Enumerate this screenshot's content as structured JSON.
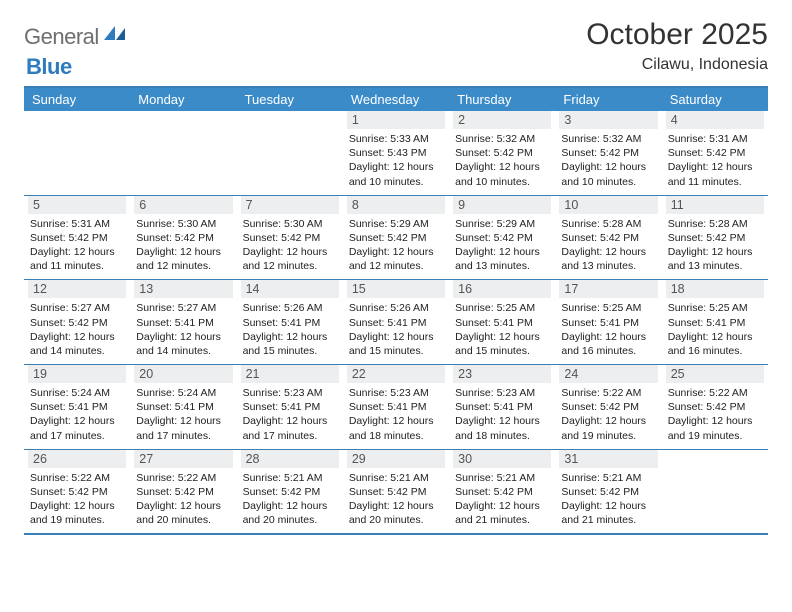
{
  "logo": {
    "text_gray": "General",
    "text_blue": "Blue"
  },
  "title": "October 2025",
  "location": "Cilawu, Indonesia",
  "colors": {
    "header_bg": "#3b8bc9",
    "border": "#3a7fb5",
    "daynum_bg": "#eceeef",
    "logo_gray": "#6f6f6f",
    "logo_blue": "#2f7bbf"
  },
  "day_headers": [
    "Sunday",
    "Monday",
    "Tuesday",
    "Wednesday",
    "Thursday",
    "Friday",
    "Saturday"
  ],
  "weeks": [
    [
      {
        "num": "",
        "sunrise": "",
        "sunset": "",
        "daylight": ""
      },
      {
        "num": "",
        "sunrise": "",
        "sunset": "",
        "daylight": ""
      },
      {
        "num": "",
        "sunrise": "",
        "sunset": "",
        "daylight": ""
      },
      {
        "num": "1",
        "sunrise": "Sunrise: 5:33 AM",
        "sunset": "Sunset: 5:43 PM",
        "daylight": "Daylight: 12 hours and 10 minutes."
      },
      {
        "num": "2",
        "sunrise": "Sunrise: 5:32 AM",
        "sunset": "Sunset: 5:42 PM",
        "daylight": "Daylight: 12 hours and 10 minutes."
      },
      {
        "num": "3",
        "sunrise": "Sunrise: 5:32 AM",
        "sunset": "Sunset: 5:42 PM",
        "daylight": "Daylight: 12 hours and 10 minutes."
      },
      {
        "num": "4",
        "sunrise": "Sunrise: 5:31 AM",
        "sunset": "Sunset: 5:42 PM",
        "daylight": "Daylight: 12 hours and 11 minutes."
      }
    ],
    [
      {
        "num": "5",
        "sunrise": "Sunrise: 5:31 AM",
        "sunset": "Sunset: 5:42 PM",
        "daylight": "Daylight: 12 hours and 11 minutes."
      },
      {
        "num": "6",
        "sunrise": "Sunrise: 5:30 AM",
        "sunset": "Sunset: 5:42 PM",
        "daylight": "Daylight: 12 hours and 12 minutes."
      },
      {
        "num": "7",
        "sunrise": "Sunrise: 5:30 AM",
        "sunset": "Sunset: 5:42 PM",
        "daylight": "Daylight: 12 hours and 12 minutes."
      },
      {
        "num": "8",
        "sunrise": "Sunrise: 5:29 AM",
        "sunset": "Sunset: 5:42 PM",
        "daylight": "Daylight: 12 hours and 12 minutes."
      },
      {
        "num": "9",
        "sunrise": "Sunrise: 5:29 AM",
        "sunset": "Sunset: 5:42 PM",
        "daylight": "Daylight: 12 hours and 13 minutes."
      },
      {
        "num": "10",
        "sunrise": "Sunrise: 5:28 AM",
        "sunset": "Sunset: 5:42 PM",
        "daylight": "Daylight: 12 hours and 13 minutes."
      },
      {
        "num": "11",
        "sunrise": "Sunrise: 5:28 AM",
        "sunset": "Sunset: 5:42 PM",
        "daylight": "Daylight: 12 hours and 13 minutes."
      }
    ],
    [
      {
        "num": "12",
        "sunrise": "Sunrise: 5:27 AM",
        "sunset": "Sunset: 5:42 PM",
        "daylight": "Daylight: 12 hours and 14 minutes."
      },
      {
        "num": "13",
        "sunrise": "Sunrise: 5:27 AM",
        "sunset": "Sunset: 5:41 PM",
        "daylight": "Daylight: 12 hours and 14 minutes."
      },
      {
        "num": "14",
        "sunrise": "Sunrise: 5:26 AM",
        "sunset": "Sunset: 5:41 PM",
        "daylight": "Daylight: 12 hours and 15 minutes."
      },
      {
        "num": "15",
        "sunrise": "Sunrise: 5:26 AM",
        "sunset": "Sunset: 5:41 PM",
        "daylight": "Daylight: 12 hours and 15 minutes."
      },
      {
        "num": "16",
        "sunrise": "Sunrise: 5:25 AM",
        "sunset": "Sunset: 5:41 PM",
        "daylight": "Daylight: 12 hours and 15 minutes."
      },
      {
        "num": "17",
        "sunrise": "Sunrise: 5:25 AM",
        "sunset": "Sunset: 5:41 PM",
        "daylight": "Daylight: 12 hours and 16 minutes."
      },
      {
        "num": "18",
        "sunrise": "Sunrise: 5:25 AM",
        "sunset": "Sunset: 5:41 PM",
        "daylight": "Daylight: 12 hours and 16 minutes."
      }
    ],
    [
      {
        "num": "19",
        "sunrise": "Sunrise: 5:24 AM",
        "sunset": "Sunset: 5:41 PM",
        "daylight": "Daylight: 12 hours and 17 minutes."
      },
      {
        "num": "20",
        "sunrise": "Sunrise: 5:24 AM",
        "sunset": "Sunset: 5:41 PM",
        "daylight": "Daylight: 12 hours and 17 minutes."
      },
      {
        "num": "21",
        "sunrise": "Sunrise: 5:23 AM",
        "sunset": "Sunset: 5:41 PM",
        "daylight": "Daylight: 12 hours and 17 minutes."
      },
      {
        "num": "22",
        "sunrise": "Sunrise: 5:23 AM",
        "sunset": "Sunset: 5:41 PM",
        "daylight": "Daylight: 12 hours and 18 minutes."
      },
      {
        "num": "23",
        "sunrise": "Sunrise: 5:23 AM",
        "sunset": "Sunset: 5:41 PM",
        "daylight": "Daylight: 12 hours and 18 minutes."
      },
      {
        "num": "24",
        "sunrise": "Sunrise: 5:22 AM",
        "sunset": "Sunset: 5:42 PM",
        "daylight": "Daylight: 12 hours and 19 minutes."
      },
      {
        "num": "25",
        "sunrise": "Sunrise: 5:22 AM",
        "sunset": "Sunset: 5:42 PM",
        "daylight": "Daylight: 12 hours and 19 minutes."
      }
    ],
    [
      {
        "num": "26",
        "sunrise": "Sunrise: 5:22 AM",
        "sunset": "Sunset: 5:42 PM",
        "daylight": "Daylight: 12 hours and 19 minutes."
      },
      {
        "num": "27",
        "sunrise": "Sunrise: 5:22 AM",
        "sunset": "Sunset: 5:42 PM",
        "daylight": "Daylight: 12 hours and 20 minutes."
      },
      {
        "num": "28",
        "sunrise": "Sunrise: 5:21 AM",
        "sunset": "Sunset: 5:42 PM",
        "daylight": "Daylight: 12 hours and 20 minutes."
      },
      {
        "num": "29",
        "sunrise": "Sunrise: 5:21 AM",
        "sunset": "Sunset: 5:42 PM",
        "daylight": "Daylight: 12 hours and 20 minutes."
      },
      {
        "num": "30",
        "sunrise": "Sunrise: 5:21 AM",
        "sunset": "Sunset: 5:42 PM",
        "daylight": "Daylight: 12 hours and 21 minutes."
      },
      {
        "num": "31",
        "sunrise": "Sunrise: 5:21 AM",
        "sunset": "Sunset: 5:42 PM",
        "daylight": "Daylight: 12 hours and 21 minutes."
      },
      {
        "num": "",
        "sunrise": "",
        "sunset": "",
        "daylight": ""
      }
    ]
  ]
}
